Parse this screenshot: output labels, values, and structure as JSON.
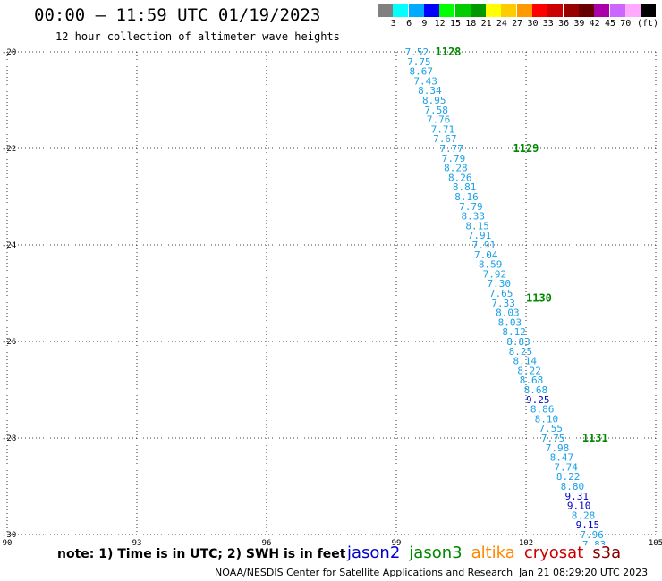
{
  "header": {
    "title": "00:00 – 11:59 UTC 01/19/2023",
    "subtitle": "12 hour collection of altimeter wave heights"
  },
  "legend": {
    "unit": "(ft)",
    "items": [
      {
        "label": "",
        "color": "#808080"
      },
      {
        "label": "3",
        "color": "#00ffff"
      },
      {
        "label": "6",
        "color": "#00aaff"
      },
      {
        "label": "9",
        "color": "#0000ff"
      },
      {
        "label": "12",
        "color": "#00ff00"
      },
      {
        "label": "15",
        "color": "#00cc00"
      },
      {
        "label": "18",
        "color": "#009900"
      },
      {
        "label": "21",
        "color": "#ffff00"
      },
      {
        "label": "24",
        "color": "#ffcc00"
      },
      {
        "label": "27",
        "color": "#ff9900"
      },
      {
        "label": "30",
        "color": "#ff0000"
      },
      {
        "label": "33",
        "color": "#cc0000"
      },
      {
        "label": "36",
        "color": "#990000"
      },
      {
        "label": "39",
        "color": "#660000"
      },
      {
        "label": "42",
        "color": "#aa00aa"
      },
      {
        "label": "45",
        "color": "#cc66ff"
      },
      {
        "label": "70",
        "color": "#ffaaff"
      },
      {
        "label": "",
        "color": "#000000"
      }
    ]
  },
  "chart_data": {
    "type": "scatter",
    "xlim": [
      90,
      105
    ],
    "ylim": [
      -30,
      -20
    ],
    "xticks": [
      90,
      93,
      96,
      99,
      102,
      105
    ],
    "yticks": [
      -20,
      -22,
      -24,
      -26,
      -28,
      -30
    ],
    "grid": true,
    "colors": {
      "cyan": "#1aa0e6",
      "blue": "#0000cc",
      "green": "#008800"
    },
    "passes": [
      {
        "label": "1128",
        "x": 99.9,
        "y": -20.0,
        "color": "green"
      },
      {
        "label": "1129",
        "x": 101.7,
        "y": -22.0,
        "color": "green"
      },
      {
        "label": "1130",
        "x": 102.0,
        "y": -25.1,
        "color": "green"
      },
      {
        "label": "1131",
        "x": 103.3,
        "y": -28.0,
        "color": "green"
      }
    ],
    "points": [
      {
        "x": 99.2,
        "y": -20.0,
        "v": "7.52",
        "color": "cyan"
      },
      {
        "x": 99.25,
        "y": -20.2,
        "v": "7.75",
        "color": "cyan"
      },
      {
        "x": 99.3,
        "y": -20.4,
        "v": "8.67",
        "color": "cyan"
      },
      {
        "x": 99.4,
        "y": -20.6,
        "v": "7.43",
        "color": "cyan"
      },
      {
        "x": 99.5,
        "y": -20.8,
        "v": "8.34",
        "color": "cyan"
      },
      {
        "x": 99.6,
        "y": -21.0,
        "v": "8.95",
        "color": "cyan"
      },
      {
        "x": 99.65,
        "y": -21.2,
        "v": "7.58",
        "color": "cyan"
      },
      {
        "x": 99.7,
        "y": -21.4,
        "v": "7.76",
        "color": "cyan"
      },
      {
        "x": 99.8,
        "y": -21.6,
        "v": "7.71",
        "color": "cyan"
      },
      {
        "x": 99.85,
        "y": -21.8,
        "v": "7.67",
        "color": "cyan"
      },
      {
        "x": 100.0,
        "y": -22.0,
        "v": "7.77",
        "color": "cyan"
      },
      {
        "x": 100.05,
        "y": -22.2,
        "v": "7.79",
        "color": "cyan"
      },
      {
        "x": 100.1,
        "y": -22.4,
        "v": "8.28",
        "color": "cyan"
      },
      {
        "x": 100.2,
        "y": -22.6,
        "v": "8.26",
        "color": "cyan"
      },
      {
        "x": 100.3,
        "y": -22.8,
        "v": "8.81",
        "color": "cyan"
      },
      {
        "x": 100.35,
        "y": -23.0,
        "v": "8.16",
        "color": "cyan"
      },
      {
        "x": 100.45,
        "y": -23.2,
        "v": "7.79",
        "color": "cyan"
      },
      {
        "x": 100.5,
        "y": -23.4,
        "v": "8.33",
        "color": "cyan"
      },
      {
        "x": 100.6,
        "y": -23.6,
        "v": "8.15",
        "color": "cyan"
      },
      {
        "x": 100.65,
        "y": -23.8,
        "v": "7.91",
        "color": "cyan"
      },
      {
        "x": 100.75,
        "y": -24.0,
        "v": "7.91",
        "color": "cyan"
      },
      {
        "x": 100.8,
        "y": -24.2,
        "v": "7.04",
        "color": "cyan"
      },
      {
        "x": 100.9,
        "y": -24.4,
        "v": "8.59",
        "color": "cyan"
      },
      {
        "x": 101.0,
        "y": -24.6,
        "v": "7.92",
        "color": "cyan"
      },
      {
        "x": 101.1,
        "y": -24.8,
        "v": "7.30",
        "color": "cyan"
      },
      {
        "x": 101.15,
        "y": -25.0,
        "v": "7.65",
        "color": "cyan"
      },
      {
        "x": 101.2,
        "y": -25.2,
        "v": "7.33",
        "color": "cyan"
      },
      {
        "x": 101.3,
        "y": -25.4,
        "v": "8.03",
        "color": "cyan"
      },
      {
        "x": 101.35,
        "y": -25.6,
        "v": "8.03",
        "color": "cyan"
      },
      {
        "x": 101.45,
        "y": -25.8,
        "v": "8.12",
        "color": "cyan"
      },
      {
        "x": 101.55,
        "y": -26.0,
        "v": "8.83",
        "color": "cyan"
      },
      {
        "x": 101.6,
        "y": -26.2,
        "v": "8.25",
        "color": "cyan"
      },
      {
        "x": 101.7,
        "y": -26.4,
        "v": "8.14",
        "color": "cyan"
      },
      {
        "x": 101.8,
        "y": -26.6,
        "v": "8.22",
        "color": "cyan"
      },
      {
        "x": 101.85,
        "y": -26.8,
        "v": "8.68",
        "color": "cyan"
      },
      {
        "x": 101.95,
        "y": -27.0,
        "v": "8.68",
        "color": "cyan"
      },
      {
        "x": 102.0,
        "y": -27.2,
        "v": "9.25",
        "color": "blue"
      },
      {
        "x": 102.1,
        "y": -27.4,
        "v": "8.86",
        "color": "cyan"
      },
      {
        "x": 102.2,
        "y": -27.6,
        "v": "8.10",
        "color": "cyan"
      },
      {
        "x": 102.3,
        "y": -27.8,
        "v": "7.55",
        "color": "cyan"
      },
      {
        "x": 102.35,
        "y": -28.0,
        "v": "7.75",
        "color": "cyan"
      },
      {
        "x": 102.45,
        "y": -28.2,
        "v": "7.98",
        "color": "cyan"
      },
      {
        "x": 102.55,
        "y": -28.4,
        "v": "8.47",
        "color": "cyan"
      },
      {
        "x": 102.65,
        "y": -28.6,
        "v": "7.74",
        "color": "cyan"
      },
      {
        "x": 102.7,
        "y": -28.8,
        "v": "8.22",
        "color": "cyan"
      },
      {
        "x": 102.8,
        "y": -29.0,
        "v": "8.80",
        "color": "cyan"
      },
      {
        "x": 102.9,
        "y": -29.2,
        "v": "9.31",
        "color": "blue"
      },
      {
        "x": 102.95,
        "y": -29.4,
        "v": "9.10",
        "color": "blue"
      },
      {
        "x": 103.05,
        "y": -29.6,
        "v": "8.28",
        "color": "cyan"
      },
      {
        "x": 103.15,
        "y": -29.8,
        "v": "9.15",
        "color": "blue"
      },
      {
        "x": 103.25,
        "y": -30.0,
        "v": "7.96",
        "color": "cyan"
      },
      {
        "x": 103.3,
        "y": -30.2,
        "v": "7.83",
        "color": "cyan"
      }
    ]
  },
  "footer": {
    "note": "note: 1) Time is in UTC; 2) SWH is in feet",
    "satellites": [
      {
        "name": "jason2",
        "color": "#0000cc"
      },
      {
        "name": "jason3",
        "color": "#008800"
      },
      {
        "name": "altika",
        "color": "#ff8800"
      },
      {
        "name": "cryosat",
        "color": "#cc0000"
      },
      {
        "name": "s3a",
        "color": "#880000"
      }
    ],
    "credit": "NOAA/NESDIS Center for Satellite Applications and Research",
    "timestamp": "Jan 21 08:29:20 UTC 2023"
  }
}
